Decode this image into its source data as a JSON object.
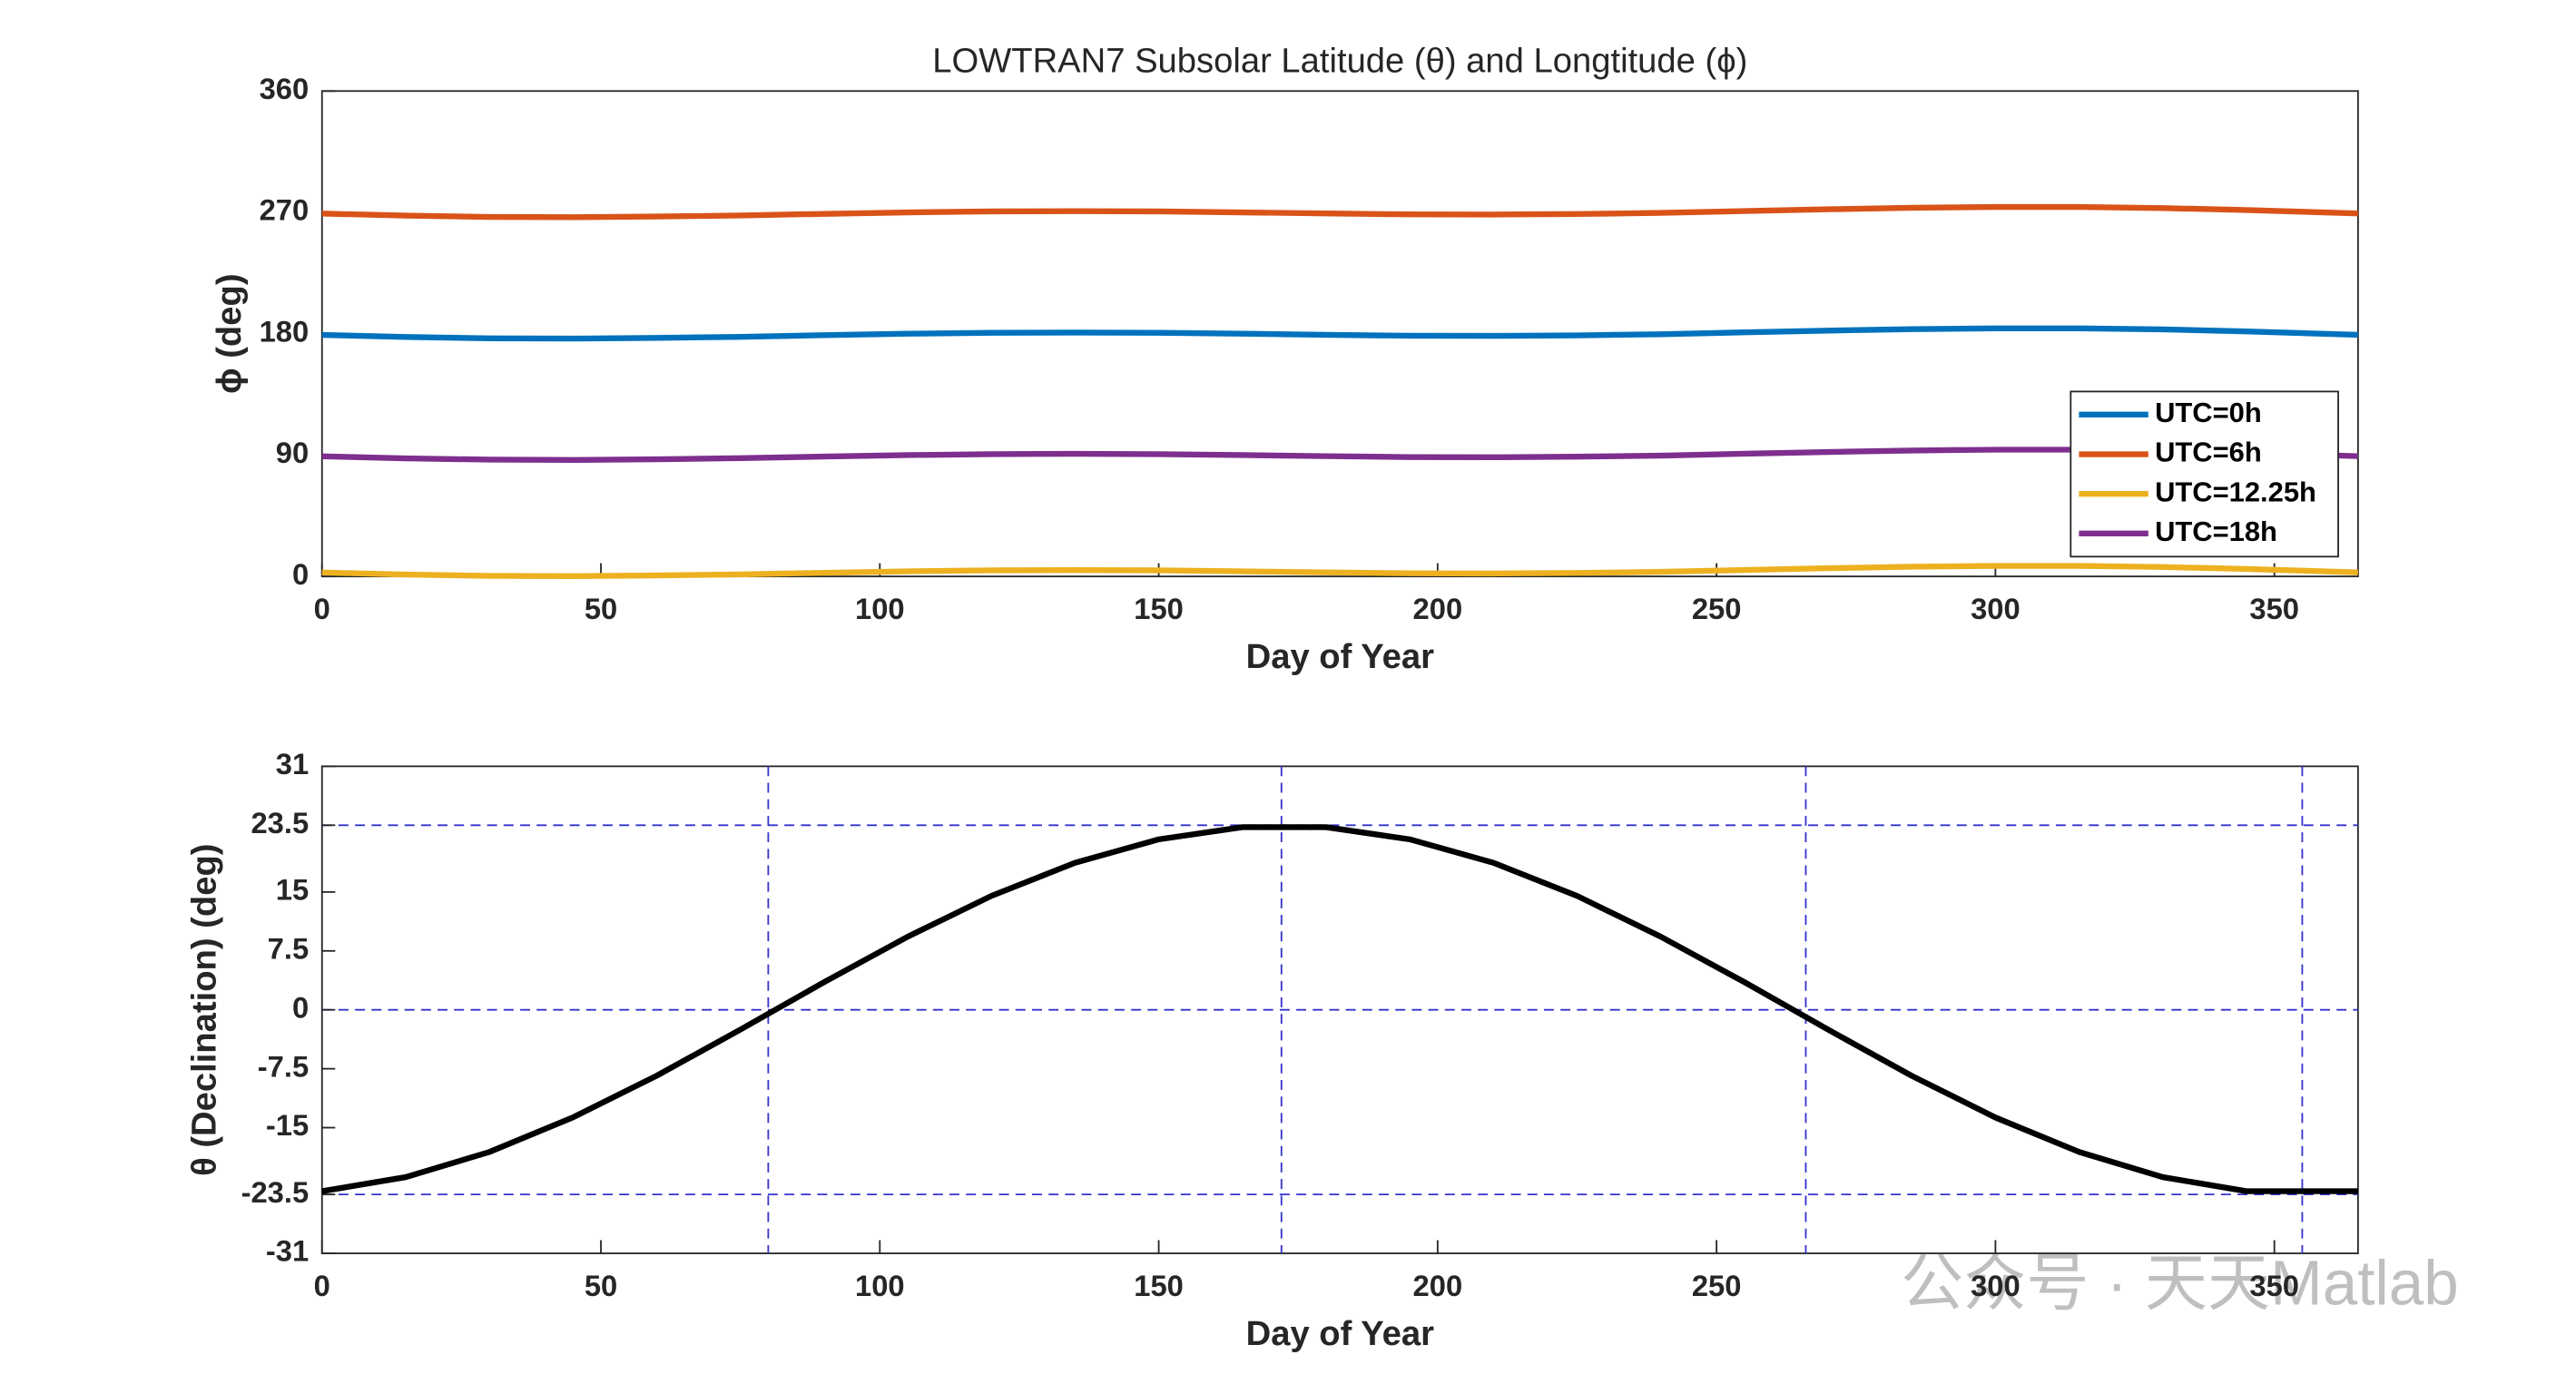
{
  "chart_data": [
    {
      "type": "line",
      "title": "LOWTRAN7 Subsolar Latitude (θ) and Longtitude (ϕ)",
      "xlabel": "Day of Year",
      "ylabel": "ϕ (deg)",
      "x": [
        0,
        15,
        30,
        45,
        60,
        75,
        90,
        105,
        120,
        135,
        150,
        165,
        180,
        195,
        210,
        225,
        240,
        255,
        270,
        285,
        300,
        315,
        330,
        345,
        365
      ],
      "series": [
        {
          "name": "UTC=0h",
          "color": "#0072BD",
          "values": [
            179.1,
            177.6,
            176.6,
            176.4,
            176.9,
            177.7,
            178.9,
            180,
            180.7,
            180.9,
            180.7,
            180,
            179.2,
            178.5,
            178.4,
            178.8,
            179.6,
            181,
            182.3,
            183.4,
            184,
            184,
            183.2,
            181.7,
            179.2
          ]
        },
        {
          "name": "UTC=6h",
          "color": "#D95319",
          "values": [
            269.1,
            267.6,
            266.6,
            266.4,
            266.9,
            267.7,
            268.9,
            270,
            270.7,
            270.9,
            270.7,
            270,
            269.2,
            268.5,
            268.4,
            268.8,
            269.6,
            271,
            272.3,
            273.4,
            274,
            274,
            273.2,
            271.7,
            269.2
          ]
        },
        {
          "name": "UTC=12.25h",
          "color": "#EDB120",
          "values": [
            2.9,
            1.4,
            0.4,
            0.2,
            0.7,
            1.5,
            2.7,
            3.8,
            4.5,
            4.7,
            4.5,
            3.8,
            3,
            2.3,
            2.2,
            2.6,
            3.4,
            4.8,
            6.1,
            7.2,
            7.8,
            7.8,
            7,
            5.5,
            3
          ]
        },
        {
          "name": "UTC=18h",
          "color": "#7E2F8E",
          "values": [
            89.1,
            87.6,
            86.6,
            86.4,
            86.9,
            87.7,
            88.9,
            90,
            90.7,
            90.9,
            90.7,
            90,
            89.2,
            88.5,
            88.4,
            88.8,
            89.6,
            91,
            92.3,
            93.4,
            94,
            94,
            93.2,
            91.7,
            89.2
          ]
        }
      ],
      "xlim": [
        0,
        365
      ],
      "xticks": [
        0,
        50,
        100,
        150,
        200,
        250,
        300,
        350
      ],
      "ylim": [
        0,
        360
      ],
      "yticks": [
        0,
        90,
        180,
        270,
        360
      ],
      "legend": "lower right"
    },
    {
      "type": "line",
      "xlabel": "Day of Year",
      "ylabel": "θ (Declination) (deg)",
      "x": [
        0,
        15,
        30,
        45,
        60,
        75,
        90,
        105,
        120,
        135,
        150,
        165,
        180,
        195,
        210,
        225,
        240,
        255,
        270,
        285,
        300,
        315,
        330,
        345,
        365
      ],
      "series": [
        {
          "color": "#000000",
          "values": [
            -23.09,
            -21.3,
            -18.1,
            -13.69,
            -8.39,
            -2.52,
            3.52,
            9.31,
            14.5,
            18.72,
            21.7,
            23.25,
            23.25,
            21.7,
            18.72,
            14.5,
            9.31,
            3.52,
            -2.52,
            -8.4,
            -13.71,
            -18.09,
            -21.3,
            -23.09,
            -23.09
          ]
        }
      ],
      "xlim": [
        0,
        365
      ],
      "xticks": [
        0,
        50,
        100,
        150,
        200,
        250,
        300,
        350
      ],
      "ylim": [
        -31,
        31
      ],
      "yticks": [
        -31,
        -23.5,
        -15,
        -7.5,
        0,
        7.5,
        15,
        23.5,
        31
      ],
      "xrefs": [
        80,
        172,
        266,
        355
      ],
      "yrefs": [
        23.5,
        0,
        -23.5
      ],
      "ref_color": "#3333cc"
    }
  ],
  "watermark": "公众号 · 天天Matlab"
}
